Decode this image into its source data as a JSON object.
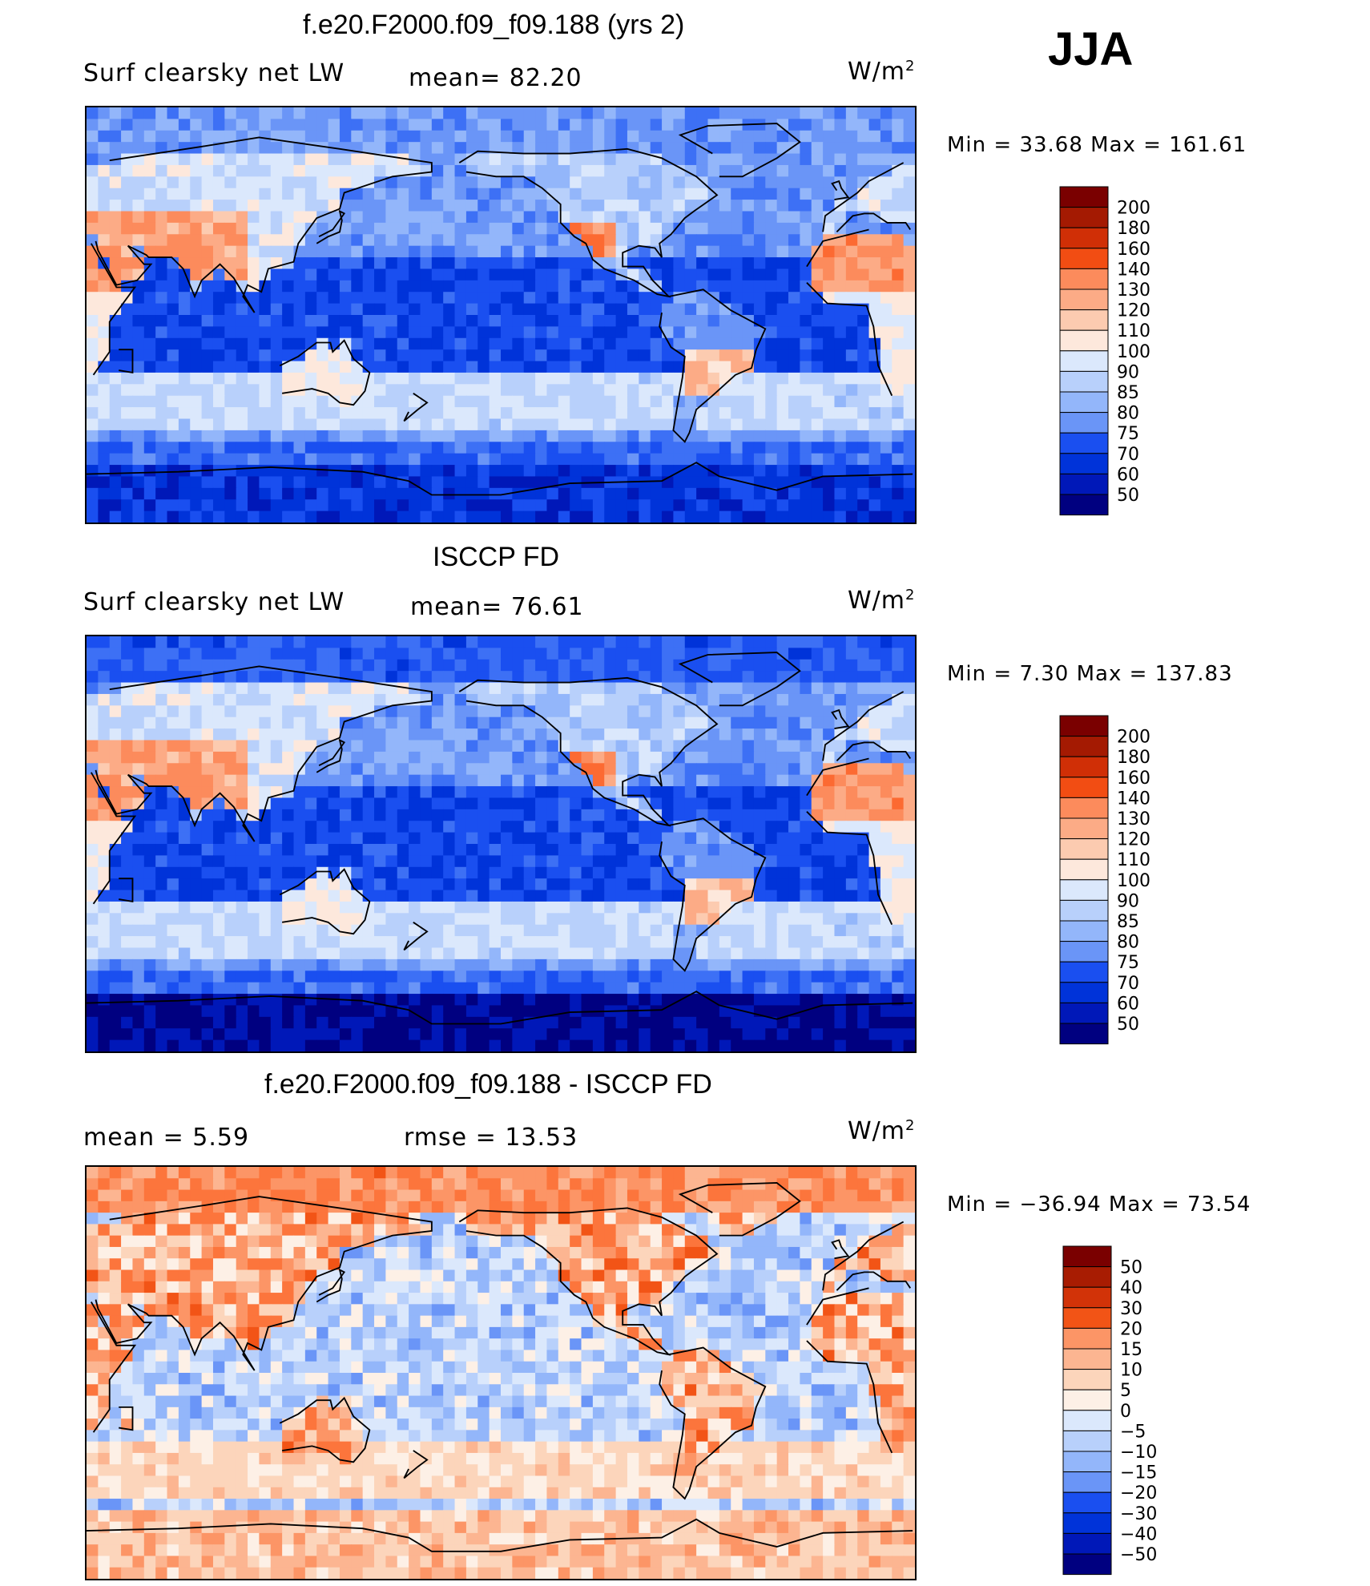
{
  "season": "JJA",
  "colors": {
    "abs_scale": [
      "#000080",
      "#0018b8",
      "#0033d9",
      "#1a4ff0",
      "#3d70f5",
      "#6a95f7",
      "#93b6fa",
      "#b8d0fb",
      "#dbe8fc",
      "#fde8dc",
      "#fccbb0",
      "#fcab86",
      "#fc8b5c",
      "#fc6a32",
      "#f24d13",
      "#d02f06",
      "#a41a02",
      "#7a0000"
    ],
    "diff_scale": [
      "#000080",
      "#0018b8",
      "#0033d9",
      "#1a4ff0",
      "#3d70f5",
      "#6a95f7",
      "#93b6fa",
      "#b8d0fb",
      "#dbe8fc",
      "#fdf0e6",
      "#fcd5bb",
      "#fcb591",
      "#fc9566",
      "#fc753c",
      "#f25416",
      "#d23308",
      "#a81c02",
      "#7a0000"
    ]
  },
  "panels": [
    {
      "id": "model",
      "title": "f.e20.F2000.f09_f09.188 (yrs 2)",
      "left_label": "Surf clearsky net LW",
      "center_label": "mean=  82.20",
      "units": "W/m",
      "units_sup": "2",
      "minmax": "Min =   33.68 Max = 161.61",
      "colorbar_labels": [
        "200",
        "180",
        "160",
        "140",
        "130",
        "120",
        "110",
        "100",
        "90",
        "85",
        "80",
        "75",
        "70",
        "60",
        "50"
      ],
      "palette": "abs_scale",
      "map_style": "model"
    },
    {
      "id": "obs",
      "title": "ISCCP FD",
      "left_label": "Surf clearsky net LW",
      "center_label": "mean=  76.61",
      "units": "W/m",
      "units_sup": "2",
      "minmax": "Min =    7.30 Max = 137.83",
      "colorbar_labels": [
        "200",
        "180",
        "160",
        "140",
        "130",
        "120",
        "110",
        "100",
        "90",
        "85",
        "80",
        "75",
        "70",
        "60",
        "50"
      ],
      "palette": "abs_scale",
      "map_style": "obs"
    },
    {
      "id": "diff",
      "title": "f.e20.F2000.f09_f09.188 - ISCCP FD",
      "left_label": "mean =    5.59",
      "center_label": "rmse =   13.53",
      "units": "W/m",
      "units_sup": "2",
      "minmax": "Min = −36.94 Max =  73.54",
      "colorbar_labels": [
        "50",
        "40",
        "30",
        "20",
        "15",
        "10",
        "5",
        "0",
        "−5",
        "−10",
        "−15",
        "−20",
        "−30",
        "−40",
        "−50"
      ],
      "palette": "diff_scale",
      "map_style": "diff"
    }
  ]
}
